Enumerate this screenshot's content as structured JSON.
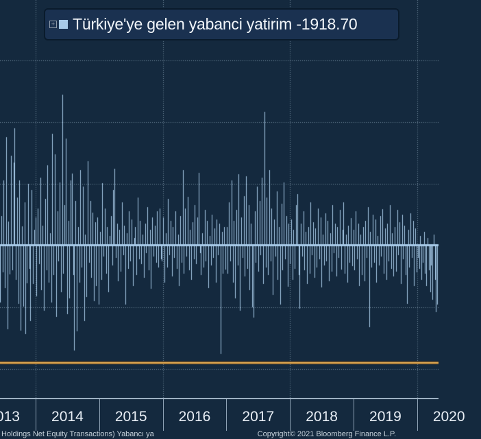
{
  "legend": {
    "expand_icon": "plus-box-icon",
    "marker_color": "#a7c9e7",
    "series_title": "Türkiye'ye gelen yabanci yatirim",
    "last_value_text": "-1918.70",
    "full_label": "Türkiye'ye gelen yabanci yatirim -1918.70"
  },
  "footer": {
    "left_text": "Holdings Net Equity Transactions) Yabancı ya",
    "right_text": "Copyright© 2021 Bloomberg Finance L.P."
  },
  "colors": {
    "background": "#14293e",
    "bar": "#a7c9e7",
    "gridline": "#8097ac",
    "threshold_line_core": "#e3af5a",
    "threshold_line_edge": "#7c5019",
    "axis_line": "#9db0c2",
    "axis_label": "#e8eef5",
    "footnote": "#c7d2db",
    "legend_background": "#1a3150",
    "legend_border": "#0a1b2c"
  },
  "chart_data": {
    "type": "bar",
    "title": "Türkiye'ye gelen yabanci yatirim",
    "series_name": "Türkiye'ye gelen yabanci yatirim",
    "last_value": -1918.7,
    "frequency": "weekly",
    "x_start_year_fraction": 2013.44,
    "x_end_year_fraction": 2020.34,
    "x_axis": {
      "labels": [
        "2013",
        "2014",
        "2015",
        "2016",
        "2017",
        "2018",
        "2019",
        "2020"
      ]
    },
    "y_axis_visible": false,
    "ylim": [
      -5000,
      8000
    ],
    "gridline_values": [
      6000,
      4000,
      2000,
      -2000,
      -4000
    ],
    "vgrid_years": [
      2014,
      2016,
      2018,
      2020
    ],
    "grid": "dotted",
    "legend_position": "top-left",
    "threshold_line": {
      "value": -3800
    },
    "values": [
      -1850,
      950,
      -870,
      2100,
      -1380,
      3500,
      -2700,
      780,
      -930,
      2900,
      -810,
      2690,
      3800,
      -1120,
      1550,
      -1890,
      2110,
      -2750,
      620,
      -1980,
      1400,
      -2870,
      -1220,
      2000,
      -760,
      -2440,
      1800,
      -1240,
      520,
      900,
      -1650,
      1200,
      -600,
      2200,
      -1450,
      650,
      -2100,
      1500,
      -800,
      2600,
      -1200,
      400,
      -1850,
      3620,
      -950,
      2950,
      -2300,
      1100,
      -500,
      2050,
      -1500,
      4890,
      -900,
      1300,
      3465,
      -2221,
      800,
      -1700,
      2100,
      2332,
      -950,
      -3400,
      1450,
      -2776,
      600,
      -1200,
      2450,
      -700,
      1900,
      -2443,
      350,
      -1666,
      2732,
      -550,
      1443,
      -1050,
      1066,
      -1800,
      750,
      -1300,
      911,
      -1900,
      450,
      -1100,
      2020,
      -350,
      1200,
      -900,
      600,
      -1500,
      300,
      950,
      -650,
      1800,
      2490,
      -400,
      700,
      -1150,
      500,
      -850,
      1400,
      -300,
      650,
      -1900,
      400,
      -750,
      1100,
      -500,
      850,
      -1300,
      250,
      600,
      -950,
      1550,
      -450,
      800,
      -600,
      350,
      -1050,
      700,
      -250,
      1250,
      -800,
      500,
      -1400,
      900,
      -350,
      650,
      -550,
      1100,
      -700,
      1200,
      -450,
      -500,
      900,
      -1200,
      400,
      -700,
      1500,
      -300,
      800,
      -1000,
      600,
      -400,
      1100,
      -750,
      350,
      -1300,
      950,
      -550,
      2440,
      -900,
      1200,
      -350,
      1580,
      -800,
      500,
      -1100,
      750,
      -450,
      1300,
      -600,
      900,
      2355,
      -250,
      -950,
      400,
      -700,
      1150,
      -500,
      800,
      -1367,
      300,
      -650,
      1000,
      -400,
      550,
      -1200,
      850,
      -300,
      700,
      -3500,
      450,
      -900,
      600,
      -777,
      600,
      -900,
      1400,
      -500,
      2100,
      -1200,
      800,
      -1700,
      1150,
      -650,
      2300,
      -2110,
      900,
      -400,
      1600,
      -1000,
      2250,
      -750,
      1300,
      -1450,
      700,
      -2000,
      -2332,
      1100,
      -550,
      1900,
      -850,
      1450,
      -300,
      2200,
      -1250,
      4333,
      -700,
      1550,
      -950,
      2450,
      -500,
      1200,
      -1600,
      850,
      -350,
      1750,
      -1100,
      600,
      -1900,
      1350,
      -800,
      2050,
      -450,
      950,
      -1344,
      722,
      -600,
      850,
      -1100,
      500,
      -750,
      1300,
      1665,
      -950,
      -2043,
      700,
      -350,
      1100,
      -800,
      450,
      -1250,
      600,
      -900,
      1400,
      -300,
      750,
      -1050,
      550,
      -700,
      1200,
      -450,
      900,
      -1350,
      350,
      -650,
      1050,
      -500,
      800,
      -1150,
      400,
      -850,
      1300,
      -250,
      700,
      -1000,
      600,
      -400,
      1150,
      -777,
      500,
      1400,
      -900,
      350,
      -1200,
      650,
      -550,
      889,
      -666,
      500,
      -800,
      1100,
      -450,
      700,
      -1300,
      350,
      -950,
      600,
      -1150,
      800,
      -400,
      1250,
      -2642,
      450,
      -700,
      1000,
      -550,
      850,
      -1200,
      300,
      -650,
      950,
      -350,
      1180,
      -900,
      550,
      -1100,
      700,
      -500,
      1300,
      -750,
      400,
      -1000,
      600,
      -850,
      1150,
      -300,
      750,
      -1250,
      1000,
      -450,
      650,
      -950,
      -1888,
      500,
      -700,
      1050,
      -400,
      800,
      -1322,
      566,
      -877,
      -400,
      -750,
      300,
      -1100,
      -550,
      450,
      -900,
      -1300,
      250,
      -800,
      -1500,
      -650,
      -1766,
      350,
      -1100,
      -2155,
      -1918.7
    ]
  }
}
